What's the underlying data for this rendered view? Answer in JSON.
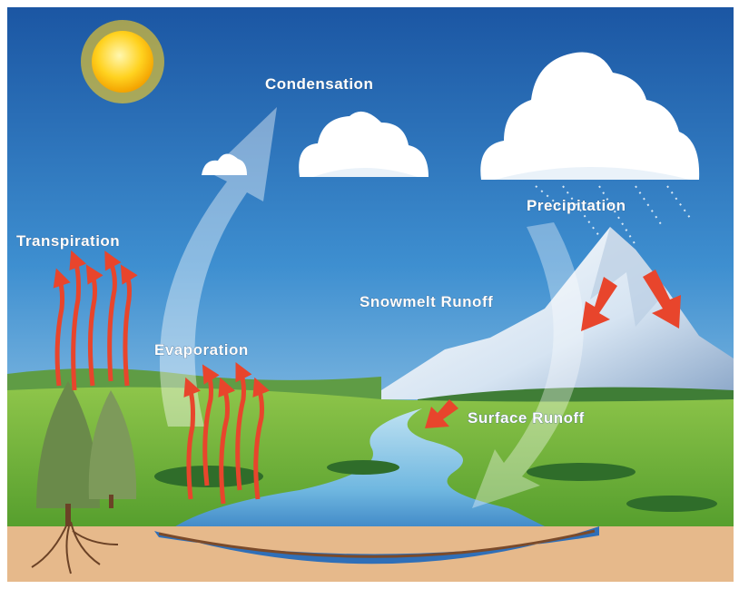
{
  "labels": [
    "Condensation",
    "Precipitation",
    "Transpiration",
    "Evaporation",
    "Snowmelt Runoff",
    "Surface Runoff"
  ]
}
